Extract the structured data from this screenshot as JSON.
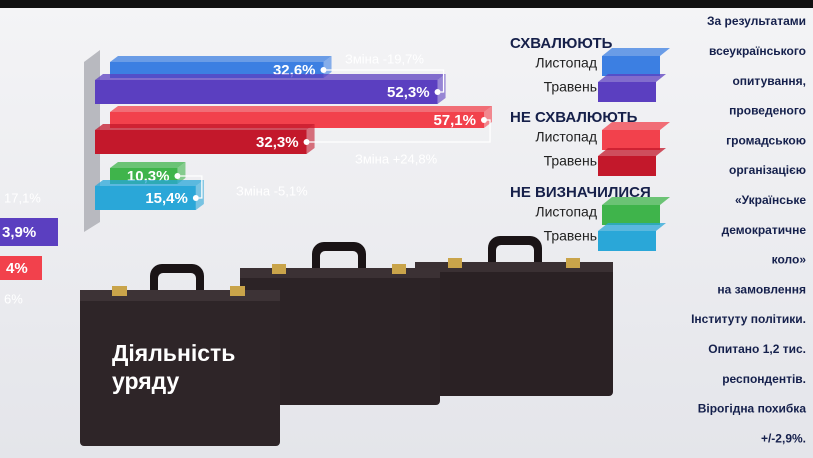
{
  "chart_data": {
    "type": "bar",
    "categories": [
      "СХВАЛЮЮТЬ",
      "НЕ СХВАЛЮЮТЬ",
      "НЕ ВИЗНАЧИЛИСЯ"
    ],
    "series": [
      {
        "name": "Листопад",
        "colors": [
          "#3c7fe2",
          "#f2414c",
          "#3fb44b"
        ],
        "values": [
          32.6,
          57.1,
          10.3
        ],
        "value_labels": [
          "32,6%",
          "57,1%",
          "10,3%"
        ]
      },
      {
        "name": "Травень",
        "colors": [
          "#5b3fc0",
          "#c3182b",
          "#2aa7d8"
        ],
        "values": [
          52.3,
          32.3,
          15.4
        ],
        "value_labels": [
          "52,3%",
          "32,3%",
          "15,4%"
        ]
      }
    ],
    "annotations": [
      "Зміна -19,7%",
      "Зміна +24,8%",
      "Зміна -5,1%"
    ],
    "left_fragments": [
      "17,1%",
      "3,9%",
      "4%",
      "6%"
    ],
    "image_caption": [
      "Діяльність",
      "уряду"
    ],
    "side_text": [
      "За результатами",
      "всеукраїнського",
      "опитування,",
      "проведеного",
      "громадською",
      "організацією",
      "«Українське",
      "демократичне",
      "коло»",
      "на замовлення",
      "Інституту політики.",
      "Опитано 1,2 тис.",
      "респондентів.",
      "Вірогідна похибка",
      "+/-2,9%."
    ]
  }
}
